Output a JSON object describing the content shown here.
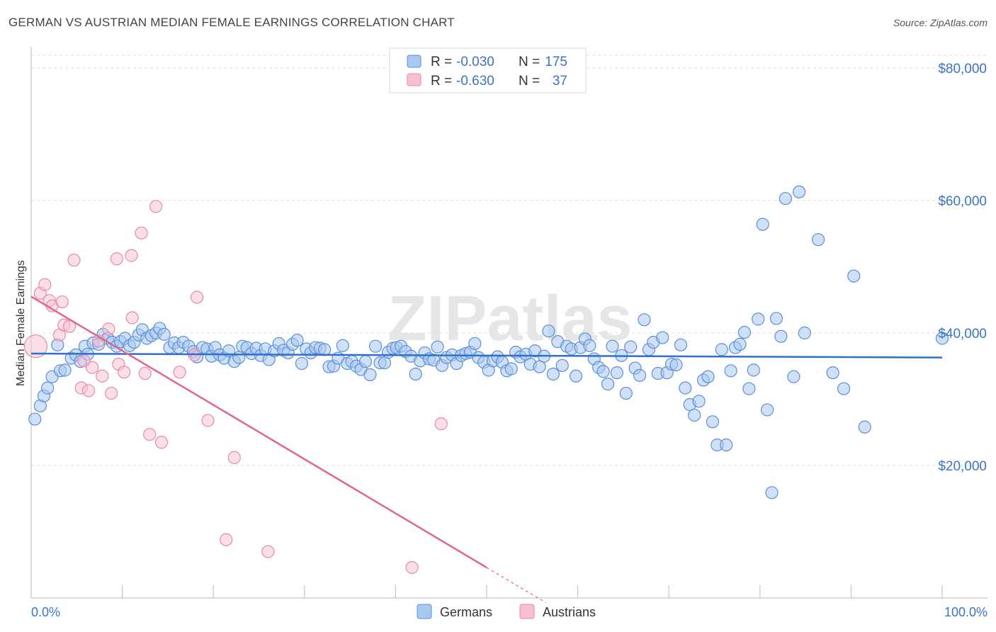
{
  "title": "GERMAN VS AUSTRIAN MEDIAN FEMALE EARNINGS CORRELATION CHART",
  "source": "Source: ZipAtlas.com",
  "watermark": "ZIPatlas",
  "colors": {
    "blue": "#5b8fd6",
    "blue_fill": "#a9c8f0",
    "blue_line": "#2f6fcf",
    "pink": "#e889a8",
    "pink_fill": "#f7bfd0",
    "pink_line": "#e06690",
    "tick_label": "#3b73c8",
    "grid": "#dddddd"
  },
  "legend": {
    "rows": [
      {
        "r_label": "R =",
        "r_value": "-0.030",
        "n_label": "N =",
        "n_value": "175",
        "series": "Germans"
      },
      {
        "r_label": "R =",
        "r_value": "-0.630",
        "n_label": "N =",
        "n_value": "37",
        "series": "Austrians"
      }
    ]
  },
  "bottom_legend": [
    "Germans",
    "Austrians"
  ],
  "chart_data": {
    "type": "scatter",
    "title": "GERMAN VS AUSTRIAN MEDIAN FEMALE EARNINGS CORRELATION CHART",
    "xlabel": "",
    "ylabel": "Median Female Earnings",
    "xlim": [
      0,
      100
    ],
    "ylim": [
      0,
      80000
    ],
    "x_tick_labels": [
      "0.0%",
      "100.0%"
    ],
    "y_ticks": [
      20000,
      40000,
      60000,
      80000
    ],
    "y_tick_labels": [
      "$20,000",
      "$40,000",
      "$60,000",
      "$80,000"
    ],
    "series": [
      {
        "name": "Germans",
        "trend": {
          "x": [
            0,
            100
          ],
          "y": [
            36900,
            36300
          ]
        },
        "points": [
          [
            0.4,
            27000
          ],
          [
            1,
            29000
          ],
          [
            1.4,
            30500
          ],
          [
            1.8,
            31700
          ],
          [
            2.3,
            33400
          ],
          [
            2.9,
            38200
          ],
          [
            3.2,
            34300
          ],
          [
            3.7,
            34400
          ],
          [
            4.4,
            36200
          ],
          [
            4.9,
            36700
          ],
          [
            5.4,
            35700
          ],
          [
            5.9,
            38000
          ],
          [
            6.2,
            36800
          ],
          [
            6.8,
            38500
          ],
          [
            7.4,
            38300
          ],
          [
            7.9,
            39800
          ],
          [
            8.4,
            39200
          ],
          [
            8.9,
            38600
          ],
          [
            9.4,
            38000
          ],
          [
            9.8,
            38700
          ],
          [
            10.3,
            39200
          ],
          [
            10.8,
            38100
          ],
          [
            11.3,
            38600
          ],
          [
            11.8,
            39700
          ],
          [
            12.2,
            40500
          ],
          [
            12.7,
            39200
          ],
          [
            13.2,
            39600
          ],
          [
            13.7,
            40000
          ],
          [
            14.1,
            40700
          ],
          [
            14.6,
            39800
          ],
          [
            15.2,
            37800
          ],
          [
            15.7,
            38500
          ],
          [
            16.2,
            37800
          ],
          [
            16.7,
            38600
          ],
          [
            17.3,
            38000
          ],
          [
            17.8,
            37200
          ],
          [
            18.2,
            36400
          ],
          [
            18.8,
            37800
          ],
          [
            19.3,
            37600
          ],
          [
            19.8,
            36500
          ],
          [
            20.2,
            37800
          ],
          [
            20.7,
            36700
          ],
          [
            21.2,
            36200
          ],
          [
            21.7,
            37300
          ],
          [
            22.3,
            35700
          ],
          [
            22.8,
            36300
          ],
          [
            23.2,
            38000
          ],
          [
            23.7,
            37800
          ],
          [
            24.2,
            36900
          ],
          [
            24.7,
            37700
          ],
          [
            25.2,
            36600
          ],
          [
            25.7,
            37600
          ],
          [
            26.1,
            36000
          ],
          [
            26.7,
            37300
          ],
          [
            27.2,
            38400
          ],
          [
            27.7,
            37400
          ],
          [
            28.2,
            37000
          ],
          [
            28.7,
            38300
          ],
          [
            29.2,
            38900
          ],
          [
            29.7,
            35400
          ],
          [
            30.2,
            37600
          ],
          [
            30.7,
            37000
          ],
          [
            31.2,
            37800
          ],
          [
            31.7,
            37700
          ],
          [
            32.2,
            37500
          ],
          [
            32.7,
            34900
          ],
          [
            33.2,
            35000
          ],
          [
            33.7,
            36200
          ],
          [
            34.2,
            38100
          ],
          [
            34.7,
            35400
          ],
          [
            35.2,
            35700
          ],
          [
            35.7,
            35000
          ],
          [
            36.2,
            34500
          ],
          [
            36.7,
            35700
          ],
          [
            37.2,
            33700
          ],
          [
            37.8,
            38000
          ],
          [
            38.3,
            35500
          ],
          [
            38.8,
            35500
          ],
          [
            39.2,
            37100
          ],
          [
            39.7,
            37700
          ],
          [
            40.1,
            37800
          ],
          [
            40.6,
            38000
          ],
          [
            41.1,
            37200
          ],
          [
            41.7,
            36500
          ],
          [
            42.2,
            33800
          ],
          [
            42.7,
            35800
          ],
          [
            43.2,
            37000
          ],
          [
            43.7,
            36100
          ],
          [
            44.2,
            35900
          ],
          [
            44.6,
            37900
          ],
          [
            45.1,
            35100
          ],
          [
            45.6,
            36300
          ],
          [
            46.2,
            36700
          ],
          [
            46.7,
            35400
          ],
          [
            47.2,
            36600
          ],
          [
            47.7,
            36900
          ],
          [
            48.2,
            37100
          ],
          [
            48.7,
            38400
          ],
          [
            49.1,
            36300
          ],
          [
            49.7,
            35600
          ],
          [
            50.2,
            34400
          ],
          [
            50.7,
            35800
          ],
          [
            51.2,
            36400
          ],
          [
            51.7,
            35600
          ],
          [
            52.2,
            34300
          ],
          [
            52.7,
            34600
          ],
          [
            53.2,
            37100
          ],
          [
            53.7,
            36400
          ],
          [
            54.3,
            36800
          ],
          [
            54.8,
            35300
          ],
          [
            55.3,
            37300
          ],
          [
            55.8,
            34900
          ],
          [
            56.3,
            36500
          ],
          [
            56.8,
            40300
          ],
          [
            57.3,
            33800
          ],
          [
            57.8,
            38700
          ],
          [
            58.3,
            35100
          ],
          [
            58.8,
            38000
          ],
          [
            59.3,
            37600
          ],
          [
            59.8,
            33500
          ],
          [
            60.3,
            37800
          ],
          [
            60.8,
            39100
          ],
          [
            61.3,
            38100
          ],
          [
            61.8,
            36100
          ],
          [
            62.3,
            34800
          ],
          [
            62.8,
            34200
          ],
          [
            63.3,
            32300
          ],
          [
            63.8,
            38000
          ],
          [
            64.3,
            34000
          ],
          [
            64.8,
            36600
          ],
          [
            65.3,
            30900
          ],
          [
            65.8,
            37900
          ],
          [
            66.3,
            34700
          ],
          [
            66.8,
            33600
          ],
          [
            67.3,
            42000
          ],
          [
            67.8,
            37500
          ],
          [
            68.3,
            38600
          ],
          [
            68.8,
            33900
          ],
          [
            69.3,
            39300
          ],
          [
            69.8,
            34000
          ],
          [
            70.3,
            35300
          ],
          [
            70.8,
            35200
          ],
          [
            71.3,
            38200
          ],
          [
            71.8,
            31700
          ],
          [
            72.3,
            29200
          ],
          [
            72.8,
            27600
          ],
          [
            73.3,
            29700
          ],
          [
            73.8,
            32900
          ],
          [
            74.3,
            33400
          ],
          [
            74.8,
            26600
          ],
          [
            75.3,
            23100
          ],
          [
            75.8,
            37500
          ],
          [
            76.3,
            23100
          ],
          [
            76.8,
            34300
          ],
          [
            77.3,
            37800
          ],
          [
            77.8,
            38300
          ],
          [
            78.3,
            40100
          ],
          [
            78.8,
            31600
          ],
          [
            79.3,
            34400
          ],
          [
            79.8,
            42100
          ],
          [
            80.3,
            56400
          ],
          [
            80.8,
            28400
          ],
          [
            81.3,
            15900
          ],
          [
            81.8,
            42200
          ],
          [
            82.3,
            39500
          ],
          [
            82.8,
            60300
          ],
          [
            83.7,
            33400
          ],
          [
            84.3,
            61300
          ],
          [
            84.9,
            40000
          ],
          [
            86.4,
            54100
          ],
          [
            88,
            34000
          ],
          [
            89.2,
            31600
          ],
          [
            90.3,
            48600
          ],
          [
            91.5,
            25800
          ],
          [
            100,
            39200
          ]
        ]
      },
      {
        "name": "Austrians",
        "trend": {
          "x": [
            0,
            50
          ],
          "y": [
            45500,
            4600
          ]
        },
        "trend_dashed": {
          "x": [
            50,
            56.5
          ],
          "y": [
            4600,
            -700
          ]
        },
        "points": [
          [
            0.5,
            38000
          ],
          [
            1.0,
            46000
          ],
          [
            1.5,
            47300
          ],
          [
            2.0,
            44900
          ],
          [
            2.3,
            44100
          ],
          [
            3.1,
            39700
          ],
          [
            3.4,
            44700
          ],
          [
            3.6,
            41200
          ],
          [
            4.2,
            41000
          ],
          [
            4.7,
            51000
          ],
          [
            5.5,
            31700
          ],
          [
            5.8,
            35800
          ],
          [
            6.3,
            31300
          ],
          [
            6.7,
            34800
          ],
          [
            7.4,
            38800
          ],
          [
            7.8,
            33500
          ],
          [
            8.5,
            40600
          ],
          [
            8.8,
            30900
          ],
          [
            9.4,
            51200
          ],
          [
            9.6,
            35300
          ],
          [
            10.2,
            34100
          ],
          [
            11.0,
            51700
          ],
          [
            11.1,
            42300
          ],
          [
            12.1,
            55100
          ],
          [
            12.5,
            33900
          ],
          [
            13.0,
            24700
          ],
          [
            13.7,
            59100
          ],
          [
            14.3,
            23500
          ],
          [
            16.3,
            34100
          ],
          [
            17.9,
            36700
          ],
          [
            18.2,
            45400
          ],
          [
            19.4,
            26800
          ],
          [
            21.4,
            8800
          ],
          [
            22.3,
            21200
          ],
          [
            26.0,
            7000
          ],
          [
            41.8,
            4600
          ],
          [
            45.0,
            26300
          ]
        ]
      }
    ]
  }
}
